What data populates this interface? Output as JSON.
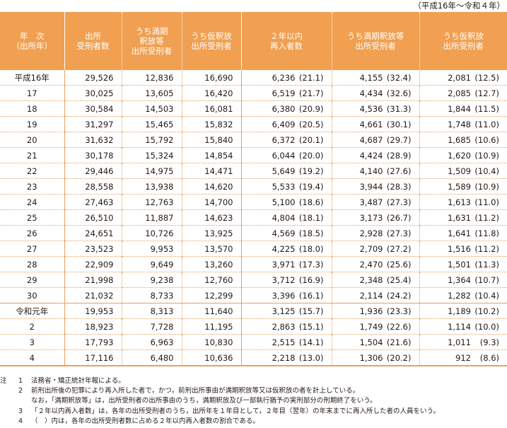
{
  "period": "（平成16年～令和４年）",
  "headers": {
    "year": "年　次\n（出所年）",
    "released": "出所\n受刑者数",
    "full_term": "うち満期\n釈放等\n出所受刑者",
    "parole": "うち仮釈放\n出所受刑者",
    "reimprisoned": "２年以内\n再入者数",
    "full_term_re": "うち満期釈放等\n出所受刑者",
    "parole_re": "うち仮釈放\n出所受刑者"
  },
  "rows": [
    {
      "year": "平成16年",
      "released": "29,526",
      "full_term": "12,836",
      "parole": "16,690",
      "re": "6,236",
      "re_pct": "(21.1)",
      "ft_re": "4,155",
      "ft_pct": "(32.4)",
      "pa_re": "2,081",
      "pa_pct": "(12.5)"
    },
    {
      "year": "17",
      "released": "30,025",
      "full_term": "13,605",
      "parole": "16,420",
      "re": "6,519",
      "re_pct": "(21.7)",
      "ft_re": "4,434",
      "ft_pct": "(32.6)",
      "pa_re": "2,085",
      "pa_pct": "(12.7)"
    },
    {
      "year": "18",
      "released": "30,584",
      "full_term": "14,503",
      "parole": "16,081",
      "re": "6,380",
      "re_pct": "(20.9)",
      "ft_re": "4,536",
      "ft_pct": "(31.3)",
      "pa_re": "1,844",
      "pa_pct": "(11.5)"
    },
    {
      "year": "19",
      "released": "31,297",
      "full_term": "15,465",
      "parole": "15,832",
      "re": "6,409",
      "re_pct": "(20.5)",
      "ft_re": "4,661",
      "ft_pct": "(30.1)",
      "pa_re": "1,748",
      "pa_pct": "(11.0)"
    },
    {
      "year": "20",
      "released": "31,632",
      "full_term": "15,792",
      "parole": "15,840",
      "re": "6,372",
      "re_pct": "(20.1)",
      "ft_re": "4,687",
      "ft_pct": "(29.7)",
      "pa_re": "1,685",
      "pa_pct": "(10.6)"
    },
    {
      "year": "21",
      "released": "30,178",
      "full_term": "15,324",
      "parole": "14,854",
      "re": "6,044",
      "re_pct": "(20.0)",
      "ft_re": "4,424",
      "ft_pct": "(28.9)",
      "pa_re": "1,620",
      "pa_pct": "(10.9)"
    },
    {
      "year": "22",
      "released": "29,446",
      "full_term": "14,975",
      "parole": "14,471",
      "re": "5,649",
      "re_pct": "(19.2)",
      "ft_re": "4,140",
      "ft_pct": "(27.6)",
      "pa_re": "1,509",
      "pa_pct": "(10.4)"
    },
    {
      "year": "23",
      "released": "28,558",
      "full_term": "13,938",
      "parole": "14,620",
      "re": "5,533",
      "re_pct": "(19.4)",
      "ft_re": "3,944",
      "ft_pct": "(28.3)",
      "pa_re": "1,589",
      "pa_pct": "(10.9)"
    },
    {
      "year": "24",
      "released": "27,463",
      "full_term": "12,763",
      "parole": "14,700",
      "re": "5,100",
      "re_pct": "(18.6)",
      "ft_re": "3,487",
      "ft_pct": "(27.3)",
      "pa_re": "1,613",
      "pa_pct": "(11.0)"
    },
    {
      "year": "25",
      "released": "26,510",
      "full_term": "11,887",
      "parole": "14,623",
      "re": "4,804",
      "re_pct": "(18.1)",
      "ft_re": "3,173",
      "ft_pct": "(26.7)",
      "pa_re": "1,631",
      "pa_pct": "(11.2)"
    },
    {
      "year": "26",
      "released": "24,651",
      "full_term": "10,726",
      "parole": "13,925",
      "re": "4,569",
      "re_pct": "(18.5)",
      "ft_re": "2,928",
      "ft_pct": "(27.3)",
      "pa_re": "1,641",
      "pa_pct": "(11.8)"
    },
    {
      "year": "27",
      "released": "23,523",
      "full_term": "9,953",
      "parole": "13,570",
      "re": "4,225",
      "re_pct": "(18.0)",
      "ft_re": "2,709",
      "ft_pct": "(27.2)",
      "pa_re": "1,516",
      "pa_pct": "(11.2)"
    },
    {
      "year": "28",
      "released": "22,909",
      "full_term": "9,649",
      "parole": "13,260",
      "re": "3,971",
      "re_pct": "(17.3)",
      "ft_re": "2,470",
      "ft_pct": "(25.6)",
      "pa_re": "1,501",
      "pa_pct": "(11.3)"
    },
    {
      "year": "29",
      "released": "21,998",
      "full_term": "9,238",
      "parole": "12,760",
      "re": "3,712",
      "re_pct": "(16.9)",
      "ft_re": "2,348",
      "ft_pct": "(25.4)",
      "pa_re": "1,364",
      "pa_pct": "(10.7)"
    },
    {
      "year": "30",
      "released": "21,032",
      "full_term": "8,733",
      "parole": "12,299",
      "re": "3,396",
      "re_pct": "(16.1)",
      "ft_re": "2,114",
      "ft_pct": "(24.2)",
      "pa_re": "1,282",
      "pa_pct": "(10.4)"
    },
    {
      "year": "令和元年",
      "released": "19,953",
      "full_term": "8,313",
      "parole": "11,640",
      "re": "3,125",
      "re_pct": "(15.7)",
      "ft_re": "1,936",
      "ft_pct": "(23.3)",
      "pa_re": "1,189",
      "pa_pct": "(10.2)"
    },
    {
      "year": "2",
      "released": "18,923",
      "full_term": "7,728",
      "parole": "11,195",
      "re": "2,863",
      "re_pct": "(15.1)",
      "ft_re": "1,749",
      "ft_pct": "(22.6)",
      "pa_re": "1,114",
      "pa_pct": "(10.0)"
    },
    {
      "year": "3",
      "released": "17,793",
      "full_term": "6,963",
      "parole": "10,830",
      "re": "2,515",
      "re_pct": "(14.1)",
      "ft_re": "1,504",
      "ft_pct": "(21.6)",
      "pa_re": "1,011",
      "pa_pct": "(9.3)"
    },
    {
      "year": "4",
      "released": "17,116",
      "full_term": "6,480",
      "parole": "10,636",
      "re": "2,218",
      "re_pct": "(13.0)",
      "ft_re": "1,306",
      "ft_pct": "(20.2)",
      "pa_re": "912",
      "pa_pct": "(8.6)"
    }
  ],
  "notes": {
    "label": "注",
    "items": [
      {
        "num": "1",
        "text": "法務省・矯正統計年報による。"
      },
      {
        "num": "2",
        "text": "前刑出所後の犯罪により再入所した者で，かつ，前刑出所事由が満期釈放等又は仮釈放の者を計上している。"
      },
      {
        "num": "",
        "text": "なお，「満期釈放等」は，出所受刑者の出所事由のうち，満期釈放及び一部執行猶予の実刑部分の刑期終了をいう。"
      },
      {
        "num": "3",
        "text": "「２年以内再入者数」は，各年の出所受刑者のうち，出所年を１年目として，２年目（翌年）の年末までに再入所した者の人員をいう。"
      },
      {
        "num": "4",
        "text": "（　）内は，各年の出所受刑者数に占める２年以内再入者数の割合である。"
      }
    ]
  }
}
